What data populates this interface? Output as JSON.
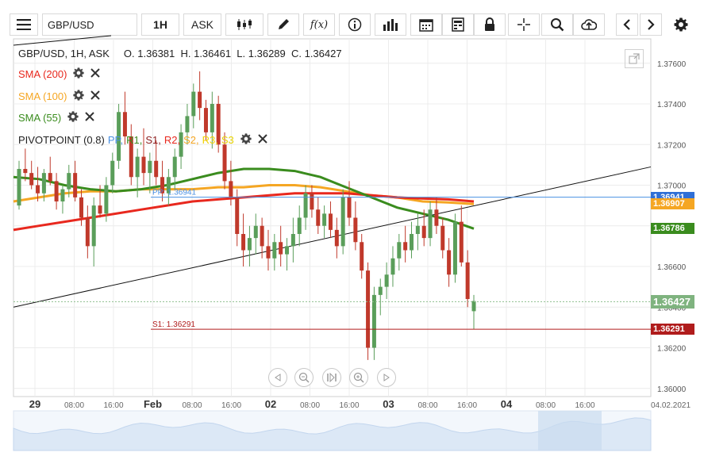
{
  "toolbar": {
    "symbol": "GBP/USD",
    "timeframe": "1H",
    "price_type": "ASK",
    "function_label": "f(x)"
  },
  "header": {
    "ohlc": "GBP/USD, 1H, ASK     O. 1.36381  H. 1.36461  L. 1.36289  C. 1.36427"
  },
  "indicators": [
    {
      "label": "SMA (200)",
      "color": "#e8281e"
    },
    {
      "label": "SMA (100)",
      "color": "#f5a623"
    },
    {
      "label": "SMA (55)",
      "color": "#3a8c1e"
    }
  ],
  "pivot_legend": {
    "prefix": "PIVOTPOINT (0.8)",
    "items": [
      {
        "label": "PP,",
        "color": "#4a90e2"
      },
      {
        "label": "R1,",
        "color": "#3a8c1e"
      },
      {
        "label": "S1,",
        "color": "#8b1a1a"
      },
      {
        "label": "R2,",
        "color": "#e8281e"
      },
      {
        "label": "S2,",
        "color": "#f5a623"
      },
      {
        "label": "R3,",
        "color": "#f0d000"
      },
      {
        "label": "S3",
        "color": "#e6d200"
      }
    ]
  },
  "chart_data": {
    "type": "candlestick",
    "ylim": [
      1.3596,
      1.3772
    ],
    "y_ticks": [
      "1.37600",
      "1.37400",
      "1.37200",
      "1.37000",
      "1.36800",
      "1.36600",
      "1.36400",
      "1.36200",
      "1.36000"
    ],
    "x_ticks": [
      "29",
      "08:00",
      "16:00",
      "Feb",
      "08:00",
      "16:00",
      "02",
      "08:00",
      "16:00",
      "03",
      "08:00",
      "16:00",
      "04",
      "08:00",
      "16:00",
      "04.02.2021"
    ],
    "pp_label": "PP: 1.36941",
    "s1_label": "S1: 1.36291",
    "price_tags": [
      {
        "label": "1.36941",
        "value": 1.36941,
        "color": "#2f6fd6"
      },
      {
        "label": "1.36907",
        "value": 1.36907,
        "color": "#f5a623"
      },
      {
        "label": "1.36786",
        "value": 1.36786,
        "color": "#3a8c1e"
      },
      {
        "label": "1.36427",
        "value": 1.36427,
        "color": "#7fb37f"
      },
      {
        "label": "1.36291",
        "value": 1.36291,
        "color": "#b01c1c"
      }
    ],
    "last_price": 1.36427,
    "pivot_pp": 1.36941,
    "pivot_s1": 1.36291,
    "up_color": "#5a9e5a",
    "down_color": "#c0392b",
    "candles": [
      [
        1.369,
        1.3712,
        1.3688,
        1.3708
      ],
      [
        1.3708,
        1.3718,
        1.3702,
        1.3706
      ],
      [
        1.3706,
        1.3712,
        1.3698,
        1.37
      ],
      [
        1.37,
        1.3709,
        1.3692,
        1.3696
      ],
      [
        1.3696,
        1.3708,
        1.3692,
        1.3706
      ],
      [
        1.3706,
        1.3714,
        1.37,
        1.3702
      ],
      [
        1.3702,
        1.3706,
        1.3688,
        1.3692
      ],
      [
        1.3692,
        1.37,
        1.3686,
        1.3698
      ],
      [
        1.3698,
        1.371,
        1.3694,
        1.3706
      ],
      [
        1.3706,
        1.3712,
        1.3692,
        1.3694
      ],
      [
        1.3694,
        1.3698,
        1.368,
        1.3684
      ],
      [
        1.3684,
        1.369,
        1.3664,
        1.367
      ],
      [
        1.367,
        1.3694,
        1.366,
        1.369
      ],
      [
        1.369,
        1.37,
        1.3684,
        1.3686
      ],
      [
        1.3686,
        1.3704,
        1.3682,
        1.37
      ],
      [
        1.37,
        1.3716,
        1.3696,
        1.3712
      ],
      [
        1.3712,
        1.374,
        1.3708,
        1.3736
      ],
      [
        1.3736,
        1.3746,
        1.372,
        1.3724
      ],
      [
        1.3724,
        1.373,
        1.37,
        1.3704
      ],
      [
        1.3704,
        1.3718,
        1.3694,
        1.3714
      ],
      [
        1.3714,
        1.3728,
        1.37,
        1.3706
      ],
      [
        1.3706,
        1.3716,
        1.3696,
        1.3712
      ],
      [
        1.3712,
        1.3722,
        1.37,
        1.3704
      ],
      [
        1.3704,
        1.3712,
        1.3692,
        1.3696
      ],
      [
        1.3696,
        1.3708,
        1.369,
        1.3704
      ],
      [
        1.3704,
        1.3718,
        1.3698,
        1.3714
      ],
      [
        1.3714,
        1.373,
        1.3708,
        1.3726
      ],
      [
        1.3726,
        1.374,
        1.372,
        1.3734
      ],
      [
        1.3734,
        1.375,
        1.3728,
        1.3746
      ],
      [
        1.3746,
        1.3756,
        1.3732,
        1.3738
      ],
      [
        1.3738,
        1.3742,
        1.3722,
        1.3726
      ],
      [
        1.3726,
        1.3746,
        1.3718,
        1.374
      ],
      [
        1.374,
        1.3744,
        1.3716,
        1.372
      ],
      [
        1.372,
        1.3726,
        1.3698,
        1.3702
      ],
      [
        1.3702,
        1.3712,
        1.369,
        1.3694
      ],
      [
        1.3694,
        1.3698,
        1.367,
        1.3676
      ],
      [
        1.3676,
        1.3686,
        1.366,
        1.3668
      ],
      [
        1.3668,
        1.368,
        1.366,
        1.3674
      ],
      [
        1.3674,
        1.3686,
        1.3666,
        1.368
      ],
      [
        1.368,
        1.3684,
        1.3664,
        1.367
      ],
      [
        1.367,
        1.3678,
        1.3658,
        1.3664
      ],
      [
        1.3664,
        1.3676,
        1.3658,
        1.3672
      ],
      [
        1.3672,
        1.368,
        1.366,
        1.3666
      ],
      [
        1.3666,
        1.3674,
        1.3658,
        1.367
      ],
      [
        1.367,
        1.3684,
        1.3662,
        1.3676
      ],
      [
        1.3676,
        1.369,
        1.367,
        1.3684
      ],
      [
        1.3684,
        1.37,
        1.3678,
        1.3696
      ],
      [
        1.3696,
        1.37,
        1.3684,
        1.3688
      ],
      [
        1.3688,
        1.3694,
        1.3676,
        1.368
      ],
      [
        1.368,
        1.369,
        1.3674,
        1.3686
      ],
      [
        1.3686,
        1.3692,
        1.3674,
        1.3678
      ],
      [
        1.3678,
        1.3684,
        1.3664,
        1.367
      ],
      [
        1.367,
        1.3698,
        1.3666,
        1.3694
      ],
      [
        1.3694,
        1.3702,
        1.368,
        1.3684
      ],
      [
        1.3684,
        1.3692,
        1.3668,
        1.3672
      ],
      [
        1.3672,
        1.3676,
        1.3654,
        1.3658
      ],
      [
        1.3658,
        1.3662,
        1.3614,
        1.362
      ],
      [
        1.362,
        1.365,
        1.3614,
        1.3646
      ],
      [
        1.3646,
        1.3654,
        1.3636,
        1.365
      ],
      [
        1.365,
        1.3662,
        1.3644,
        1.3656
      ],
      [
        1.3656,
        1.367,
        1.365,
        1.3664
      ],
      [
        1.3664,
        1.3676,
        1.3658,
        1.3672
      ],
      [
        1.3672,
        1.368,
        1.3662,
        1.3668
      ],
      [
        1.3668,
        1.3682,
        1.3664,
        1.3676
      ],
      [
        1.3676,
        1.3686,
        1.3668,
        1.368
      ],
      [
        1.368,
        1.3688,
        1.367,
        1.3674
      ],
      [
        1.3674,
        1.3692,
        1.367,
        1.3688
      ],
      [
        1.3688,
        1.3694,
        1.3676,
        1.368
      ],
      [
        1.368,
        1.3684,
        1.3664,
        1.3668
      ],
      [
        1.3668,
        1.3674,
        1.365,
        1.3656
      ],
      [
        1.3656,
        1.3686,
        1.3652,
        1.3682
      ],
      [
        1.3682,
        1.369,
        1.366,
        1.3662
      ],
      [
        1.3662,
        1.3668,
        1.364,
        1.3644
      ],
      [
        1.3638,
        1.3646,
        1.3629,
        1.3643
      ]
    ],
    "sma200": [
      1.3678,
      1.368,
      1.3682,
      1.3684,
      1.3686,
      1.3688,
      1.369,
      1.3692,
      1.3693,
      1.3694,
      1.3695,
      1.3696,
      1.3696,
      1.3696,
      1.3695,
      1.3694,
      1.36935,
      1.3693,
      1.3692
    ],
    "sma100": [
      1.3692,
      1.3694,
      1.3696,
      1.3697,
      1.3697,
      1.3698,
      1.3698,
      1.3698,
      1.3699,
      1.3699,
      1.37,
      1.37,
      1.3699,
      1.3697,
      1.3695,
      1.3694,
      1.3692,
      1.36915,
      1.36907
    ],
    "sma55": [
      1.3704,
      1.3703,
      1.37,
      1.3698,
      1.3697,
      1.3698,
      1.37,
      1.3703,
      1.3706,
      1.3708,
      1.3708,
      1.3707,
      1.3704,
      1.3699,
      1.3694,
      1.3689,
      1.3686,
      1.3683,
      1.36786
    ],
    "trendline": [
      [
        0,
        1.364
      ],
      [
        1,
        1.3709
      ]
    ]
  }
}
